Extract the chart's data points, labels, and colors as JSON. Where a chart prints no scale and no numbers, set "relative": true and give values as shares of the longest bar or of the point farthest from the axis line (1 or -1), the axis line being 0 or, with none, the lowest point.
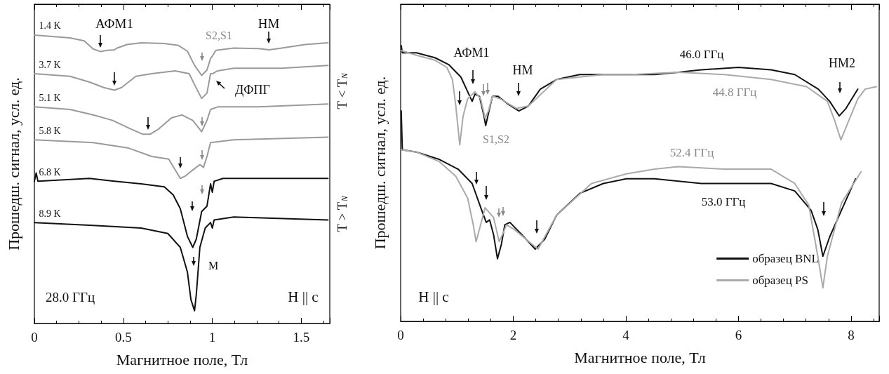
{
  "chart_data": [
    {
      "type": "line",
      "xlabel": "Магнитное поле, Тл",
      "ylabel": "Прошедш. сигнал, усл. ед.",
      "relative": true,
      "marker": "none",
      "xlim": [
        0,
        1.66
      ],
      "xticks": [
        0,
        {
          "value": 0.125,
          "label": null
        },
        {
          "value": 0.25,
          "label": null
        },
        {
          "value": 0.375,
          "label": null
        },
        0.5,
        {
          "value": 0.625,
          "label": null
        },
        {
          "value": 0.75,
          "label": null
        },
        {
          "value": 0.875,
          "label": null
        },
        1,
        {
          "value": 1.125,
          "label": null
        },
        {
          "value": 1.25,
          "label": null
        },
        {
          "value": 1.375,
          "label": null
        },
        1.5,
        {
          "value": 1.625,
          "label": null
        }
      ],
      "series": [
        {
          "name": "1.4 K",
          "color": "#9a9a9a",
          "x": [
            0,
            0.2,
            0.28,
            0.33,
            0.37,
            0.41,
            0.45,
            0.465,
            0.52,
            0.6,
            0.73,
            0.81,
            0.86,
            0.9,
            0.94,
            0.97,
            0.99,
            1.0,
            1.02,
            1.12,
            1.26,
            1.32,
            1.39,
            1.52,
            1.65
          ],
          "values": [
            1.0,
            0.99,
            0.98,
            0.952,
            0.943,
            0.947,
            0.949,
            0.955,
            0.967,
            0.973,
            0.971,
            0.964,
            0.944,
            0.895,
            0.86,
            0.879,
            0.919,
            0.927,
            0.947,
            0.955,
            0.953,
            0.949,
            0.955,
            0.967,
            0.973
          ]
        },
        {
          "name": "3.7 K",
          "color": "#9a9a9a",
          "x": [
            0,
            0.2,
            0.31,
            0.39,
            0.45,
            0.49,
            0.57,
            0.66,
            0.79,
            0.87,
            0.9,
            0.94,
            0.97,
            0.99,
            1.0,
            1.03,
            1.12,
            1.39,
            1.65
          ],
          "values": [
            0.866,
            0.857,
            0.837,
            0.818,
            0.809,
            0.818,
            0.857,
            0.866,
            0.876,
            0.866,
            0.828,
            0.78,
            0.799,
            0.866,
            0.866,
            0.876,
            0.885,
            0.885,
            0.895
          ]
        },
        {
          "name": "5.1 K",
          "color": "#9a9a9a",
          "x": [
            0,
            0.2,
            0.33,
            0.44,
            0.54,
            0.61,
            0.65,
            0.7,
            0.77,
            0.83,
            0.89,
            0.94,
            0.97,
            0.99,
            1.03,
            1.26,
            1.65
          ],
          "values": [
            0.751,
            0.742,
            0.723,
            0.704,
            0.675,
            0.656,
            0.656,
            0.675,
            0.713,
            0.723,
            0.704,
            0.665,
            0.704,
            0.742,
            0.751,
            0.751,
            0.761
          ]
        },
        {
          "name": "5.8 K",
          "color": "#9a9a9a",
          "x": [
            0,
            0.33,
            0.53,
            0.66,
            0.755,
            0.82,
            0.85,
            0.89,
            0.93,
            0.95,
            0.97,
            0.99,
            1.12,
            1.65
          ],
          "values": [
            0.637,
            0.627,
            0.608,
            0.579,
            0.57,
            0.503,
            0.512,
            0.532,
            0.551,
            0.541,
            0.579,
            0.627,
            0.637,
            0.646
          ]
        },
        {
          "name": "6.8 K",
          "color": "#111111",
          "x": [
            0,
            0.01,
            0.02,
            0.31,
            0.45,
            0.6,
            0.73,
            0.78,
            0.82,
            0.86,
            0.89,
            0.91,
            0.94,
            0.97,
            0.99,
            1.0,
            1.01,
            1.06,
            1.26,
            1.65
          ],
          "values": [
            0.493,
            0.522,
            0.493,
            0.503,
            0.493,
            0.484,
            0.474,
            0.446,
            0.398,
            0.302,
            0.264,
            0.293,
            0.388,
            0.407,
            0.484,
            0.455,
            0.493,
            0.503,
            0.503,
            0.503
          ]
        },
        {
          "name": "8.9 K",
          "color": "#111111",
          "x": [
            0,
            0.33,
            0.6,
            0.75,
            0.82,
            0.86,
            0.88,
            0.9,
            0.91,
            0.93,
            0.96,
            0.99,
            1.0,
            1.01,
            1.12,
            1.65
          ],
          "values": [
            0.35,
            0.34,
            0.331,
            0.312,
            0.264,
            0.178,
            0.082,
            0.044,
            0.101,
            0.264,
            0.331,
            0.35,
            0.331,
            0.359,
            0.369,
            0.359
          ]
        }
      ],
      "annotations": [
        "АФМ1",
        "S2,S1",
        "НМ",
        "ДФПГ",
        "M",
        "T < T$_{N}$",
        "T > T$_{N}$",
        "28.0 ГГц",
        "H || c"
      ]
    },
    {
      "type": "line",
      "xlabel": "Магнитное поле, Тл",
      "ylabel": "Прошедш. сигнал, усл. ед.",
      "relative": true,
      "marker": "none",
      "legend": "bottom right",
      "xlim": [
        0,
        8.5
      ],
      "xticks": [
        0,
        {
          "value": 0.4,
          "label": null
        },
        {
          "value": 0.8,
          "label": null
        },
        {
          "value": 1.2,
          "label": null
        },
        {
          "value": 1.6,
          "label": null
        },
        2,
        {
          "value": 2.4,
          "label": null
        },
        {
          "value": 2.8,
          "label": null
        },
        {
          "value": 3.2,
          "label": null
        },
        {
          "value": 3.6,
          "label": null
        },
        4,
        {
          "value": 4.4,
          "label": null
        },
        {
          "value": 4.8,
          "label": null
        },
        {
          "value": 5.2,
          "label": null
        },
        {
          "value": 5.6,
          "label": null
        },
        6,
        {
          "value": 6.4,
          "label": null
        },
        {
          "value": 6.8,
          "label": null
        },
        {
          "value": 7.2,
          "label": null
        },
        {
          "value": 7.6,
          "label": null
        },
        8,
        {
          "value": 8.4,
          "label": null
        }
      ],
      "series": [
        {
          "name": "образец BNL",
          "color": "#111111",
          "x": [
            0.01,
            0.03,
            0.28,
            0.61,
            0.86,
            1.07,
            1.19,
            1.27,
            1.32,
            1.4,
            1.48,
            1.51,
            1.56,
            1.63,
            1.73,
            1.9,
            2.1,
            2.27,
            2.48,
            2.77,
            3.18,
            3.6,
            4.01,
            4.51,
            4.93,
            5.34,
            6.0,
            6.58,
            7.0,
            7.42,
            7.62,
            7.79,
            7.91,
            8.12
          ],
          "values": [
            1.0,
            0.974,
            0.974,
            0.956,
            0.93,
            0.886,
            0.833,
            0.798,
            0.824,
            0.816,
            0.745,
            0.71,
            0.754,
            0.816,
            0.816,
            0.789,
            0.763,
            0.781,
            0.842,
            0.877,
            0.895,
            0.895,
            0.895,
            0.895,
            0.903,
            0.912,
            0.921,
            0.912,
            0.895,
            0.842,
            0.798,
            0.745,
            0.772,
            0.842
          ]
        },
        {
          "name": "образец PS",
          "color": "#aaaaaa",
          "x": [
            0.01,
            0.28,
            0.61,
            0.82,
            0.92,
            0.98,
            1.05,
            1.11,
            1.19,
            1.32,
            1.42,
            1.5,
            1.56,
            1.63,
            1.77,
            2.06,
            2.27,
            2.77,
            3.6,
            4.1,
            4.93,
            5.75,
            6.58,
            7.21,
            7.58,
            7.71,
            7.82,
            7.96,
            8.12,
            8.25,
            8.45
          ],
          "values": [
            0.982,
            0.965,
            0.947,
            0.921,
            0.877,
            0.781,
            0.64,
            0.745,
            0.807,
            0.833,
            0.807,
            0.737,
            0.763,
            0.816,
            0.807,
            0.772,
            0.781,
            0.877,
            0.895,
            0.895,
            0.903,
            0.895,
            0.877,
            0.851,
            0.798,
            0.728,
            0.658,
            0.728,
            0.807,
            0.842,
            0.851
          ]
        },
        {
          "color": "#111111",
          "x": [
            0.01,
            0.03,
            0.28,
            0.69,
            1.02,
            1.27,
            1.44,
            1.52,
            1.58,
            1.65,
            1.72,
            1.79,
            1.85,
            1.94,
            2.15,
            2.39,
            2.56,
            2.77,
            3.18,
            3.6,
            4.01,
            4.51,
            5.34,
            6.58,
            7.0,
            7.29,
            7.41,
            7.5,
            7.62,
            7.83,
            8.08
          ],
          "values": [
            0.763,
            0.622,
            0.614,
            0.587,
            0.552,
            0.5,
            0.403,
            0.359,
            0.368,
            0.315,
            0.227,
            0.28,
            0.35,
            0.359,
            0.315,
            0.262,
            0.298,
            0.385,
            0.464,
            0.5,
            0.517,
            0.517,
            0.5,
            0.5,
            0.473,
            0.403,
            0.333,
            0.236,
            0.306,
            0.403,
            0.517
          ]
        },
        {
          "color": "#aaaaaa",
          "x": [
            0.01,
            0.28,
            0.69,
            0.98,
            1.19,
            1.29,
            1.34,
            1.42,
            1.5,
            1.65,
            1.75,
            1.81,
            1.88,
            2.02,
            2.44,
            2.77,
            3.39,
            4.01,
            4.51,
            4.93,
            5.75,
            6.58,
            7.0,
            7.25,
            7.41,
            7.5,
            7.58,
            7.83,
            8.18
          ],
          "values": [
            0.622,
            0.614,
            0.579,
            0.526,
            0.447,
            0.35,
            0.289,
            0.35,
            0.412,
            0.377,
            0.289,
            0.315,
            0.35,
            0.333,
            0.262,
            0.385,
            0.5,
            0.535,
            0.552,
            0.561,
            0.552,
            0.552,
            0.5,
            0.421,
            0.236,
            0.122,
            0.236,
            0.429,
            0.543
          ]
        }
      ],
      "annotations": [
        "АФМ1",
        "НМ",
        "S1,S2",
        "46.0 ГГц",
        "44.8 ГГц",
        "НМ2",
        "52.4 ГГц",
        "53.0 ГГц",
        "H || c"
      ]
    }
  ]
}
